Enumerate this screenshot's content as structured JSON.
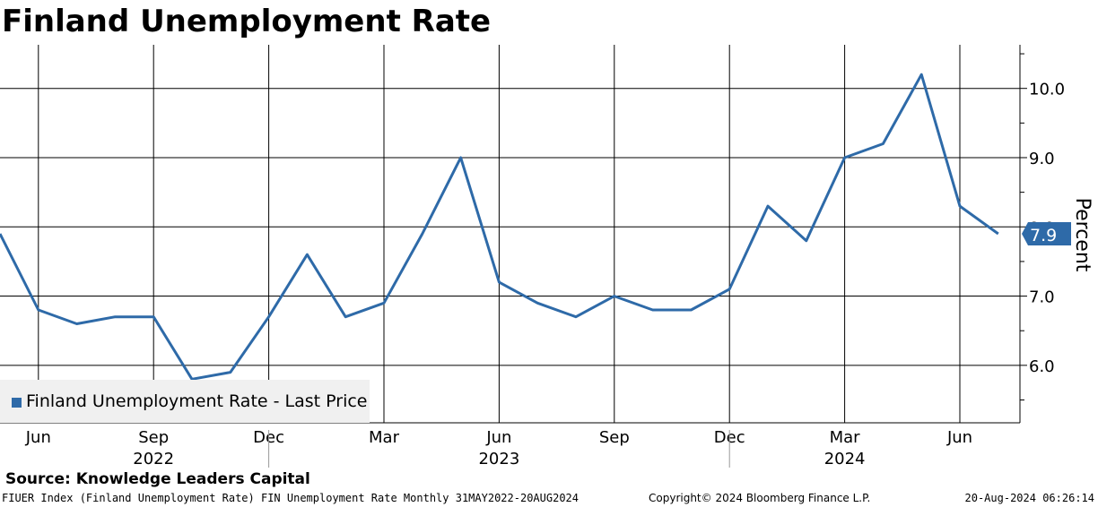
{
  "title": "Finland Unemployment Rate",
  "source": "Source: Knowledge Leaders Capital",
  "footer": {
    "left": "FIUER Index (Finland Unemployment Rate) FIN Unemployment Rate  Monthly 31MAY2022-20AUG2024",
    "center": "Copyright© 2024 Bloomberg Finance L.P.",
    "right": "20-Aug-2024 06:26:14"
  },
  "colors": {
    "line": "#2e6aa8",
    "last_label_bg": "#2e6aa8"
  },
  "chart_data": {
    "type": "line",
    "ylabel": "Percent",
    "ylim": [
      5.17,
      10.63
    ],
    "yticks": [
      6.0,
      7.0,
      8.0,
      9.0,
      10.0
    ],
    "ytick_labels": [
      "6.0",
      "7.0",
      "8.0",
      "9.0",
      "10.0"
    ],
    "x_months": [
      "2022-05",
      "2022-06",
      "2022-07",
      "2022-08",
      "2022-09",
      "2022-10",
      "2022-11",
      "2022-12",
      "2023-01",
      "2023-02",
      "2023-03",
      "2023-04",
      "2023-05",
      "2023-06",
      "2023-07",
      "2023-08",
      "2023-09",
      "2023-10",
      "2023-11",
      "2023-12",
      "2024-01",
      "2024-02",
      "2024-03",
      "2024-04",
      "2024-05",
      "2024-06",
      "2024-07"
    ],
    "x_ticks": [
      {
        "month": "2022-06",
        "label": "Jun"
      },
      {
        "month": "2022-09",
        "label": "Sep"
      },
      {
        "month": "2022-12",
        "label": "Dec"
      },
      {
        "month": "2023-03",
        "label": "Mar"
      },
      {
        "month": "2023-06",
        "label": "Jun"
      },
      {
        "month": "2023-09",
        "label": "Sep"
      },
      {
        "month": "2023-12",
        "label": "Dec"
      },
      {
        "month": "2024-03",
        "label": "Mar"
      },
      {
        "month": "2024-06",
        "label": "Jun"
      }
    ],
    "year_labels": [
      {
        "month": "2022-09",
        "label": "2022"
      },
      {
        "month": "2023-06",
        "label": "2023"
      },
      {
        "month": "2024-03",
        "label": "2024"
      }
    ],
    "series": [
      {
        "name": "Finland Unemployment Rate - Last Price",
        "values": [
          7.9,
          6.8,
          6.6,
          6.7,
          6.7,
          5.8,
          5.9,
          6.7,
          7.6,
          6.7,
          6.9,
          7.9,
          9.0,
          7.2,
          6.9,
          6.7,
          7.0,
          6.8,
          6.8,
          7.1,
          8.3,
          7.8,
          9.0,
          9.2,
          10.2,
          8.3,
          7.9
        ]
      }
    ],
    "last_value_label": "7.9",
    "grid": true,
    "legend_position": "bottom-left"
  }
}
